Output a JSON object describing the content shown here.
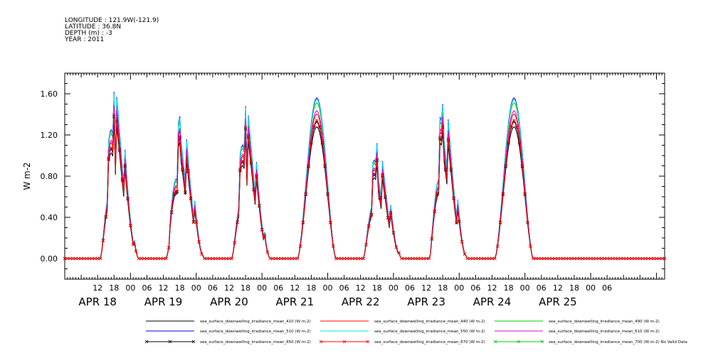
{
  "header": {
    "lines": [
      "LONGITUDE : 121.9W(-121.9)",
      "LATITUDE : 36.8N",
      "DEPTH (m) : -3",
      "YEAR : 2011"
    ]
  },
  "colors": {
    "410": "#000000",
    "440": "#ff0000",
    "490": "#00cc00",
    "510": "#0000ff",
    "550": "#00e5e5",
    "610": "#e000e0",
    "650": "#000000",
    "670": "#ff0000",
    "700": "#00cc00"
  },
  "chart_data": {
    "type": "line",
    "xlabel": "",
    "ylabel": "W m-2",
    "ylim": [
      -0.2,
      1.8
    ],
    "xlim_hours": [
      0,
      219
    ],
    "yticks": [
      "0.00",
      "0.40",
      "0.80",
      "1.20",
      "1.60"
    ],
    "ytick_values": [
      0,
      0.4,
      0.8,
      1.2,
      1.6
    ],
    "hour_tick_labels": [
      "12",
      "18",
      "00",
      "06",
      "12",
      "18",
      "00",
      "06",
      "12",
      "18",
      "00",
      "06",
      "12",
      "18",
      "00",
      "06",
      "12",
      "18",
      "00",
      "06",
      "12",
      "18",
      "00",
      "06",
      "12",
      "18",
      "00",
      "06",
      "12",
      "18",
      "00",
      "06"
    ],
    "day_labels": [
      "APR 18",
      "APR 19",
      "APR 20",
      "APR 21",
      "APR 22",
      "APR 23",
      "APR 24",
      "APR 25"
    ],
    "series": [
      {
        "name": "sea_surface_downwelling_irradiance_mean_410 (W m-2)",
        "color_key": "410",
        "marker": "none"
      },
      {
        "name": "sea_surface_downwelling_irradiance_mean_440 (W m-2)",
        "color_key": "440",
        "marker": "none"
      },
      {
        "name": "sea_surface_downwelling_irradiance_mean_490 (W m-2)",
        "color_key": "490",
        "marker": "none"
      },
      {
        "name": "sea_surface_downwelling_irradiance_mean_510 (W m-2)",
        "color_key": "510",
        "marker": "none"
      },
      {
        "name": "sea_surface_downwelling_irradiance_mean_550 (W m-2)",
        "color_key": "550",
        "marker": "none"
      },
      {
        "name": "sea_surface_downwelling_irradiance_mean_610 (W m-2)",
        "color_key": "610",
        "marker": "none"
      },
      {
        "name": "sea_surface_downwelling_irradiance_mean_650 (W m-2)",
        "color_key": "650",
        "marker": "x"
      },
      {
        "name": "sea_surface_downwelling_irradiance_mean_670 (W m-2)",
        "color_key": "670",
        "marker": "x"
      },
      {
        "name": "sea_surface_downwelling_irradiance_mean_700 (W m-2) No Valid Data",
        "color_key": "700",
        "marker": "x"
      }
    ],
    "series_factor": [
      0.82,
      0.9,
      0.97,
      1.0,
      0.99,
      0.92,
      0.85,
      0.86,
      0
    ],
    "days": [
      {
        "sunrise": 13,
        "sunset": 27,
        "peak_hour": 18,
        "peak": 1.62,
        "cloudy": true,
        "seed": 3
      },
      {
        "sunrise": 37,
        "sunset": 51,
        "peak_hour": 42,
        "peak": 1.38,
        "cloudy": true,
        "seed": 7
      },
      {
        "sunrise": 61,
        "sunset": 75,
        "peak_hour": 66,
        "peak": 1.48,
        "cloudy": true,
        "seed": 11
      },
      {
        "sunrise": 85,
        "sunset": 99,
        "peak_hour": 92,
        "peak": 1.56,
        "cloudy": false,
        "seed": 0
      },
      {
        "sunrise": 109,
        "sunset": 123,
        "peak_hour": 114,
        "peak": 1.12,
        "cloudy": true,
        "seed": 17
      },
      {
        "sunrise": 133,
        "sunset": 147,
        "peak_hour": 138,
        "peak": 1.5,
        "cloudy": true,
        "seed": 23
      },
      {
        "sunrise": 157,
        "sunset": 171,
        "peak_hour": 164,
        "peak": 1.56,
        "cloudy": false,
        "seed": 0
      }
    ]
  }
}
